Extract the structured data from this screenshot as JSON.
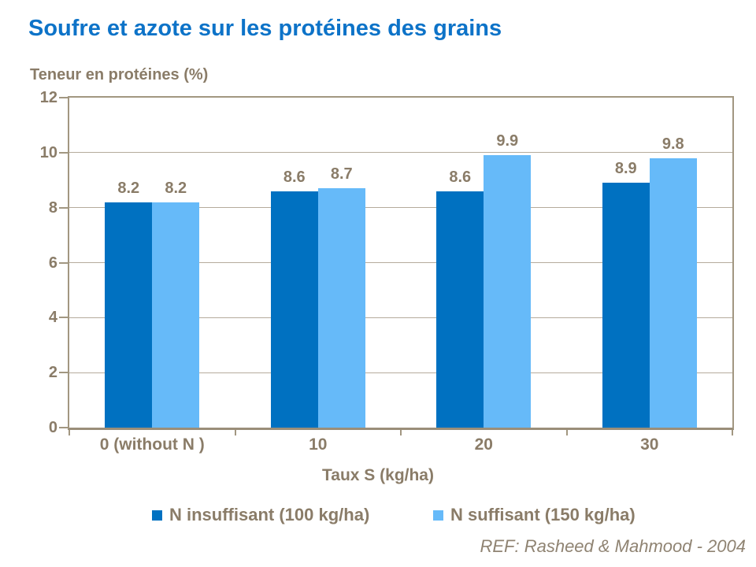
{
  "chart_data": {
    "type": "bar",
    "title": "Soufre et azote sur les protéines des grains",
    "y_axis_title": "Teneur en protéines (%)",
    "x_axis_title": "Taux S (kg/ha)",
    "categories": [
      "0 (without N )",
      "10",
      "20",
      "30"
    ],
    "series": [
      {
        "name": "N insuffisant (100 kg/ha)",
        "color": "#0071c1",
        "values": [
          8.2,
          8.6,
          8.6,
          8.9
        ]
      },
      {
        "name": "N suffisant (150 kg/ha)",
        "color": "#66baf9",
        "values": [
          8.2,
          8.7,
          9.9,
          9.8
        ]
      }
    ],
    "ylim": [
      0,
      12
    ],
    "y_ticks": [
      0,
      2,
      4,
      6,
      8,
      10,
      12
    ],
    "grid": true,
    "data_labels": true,
    "legend_position": "bottom"
  },
  "footer": {
    "reference": "REF: Rasheed & Mahmood - 2004"
  },
  "colors": {
    "title_text": "#0d73c8",
    "axis_text": "#8a7c68",
    "data_label_text": "#8a7c68",
    "gridline": "#b5ab9c",
    "axis_line": "#a29781",
    "footer_text": "#8f8372"
  }
}
